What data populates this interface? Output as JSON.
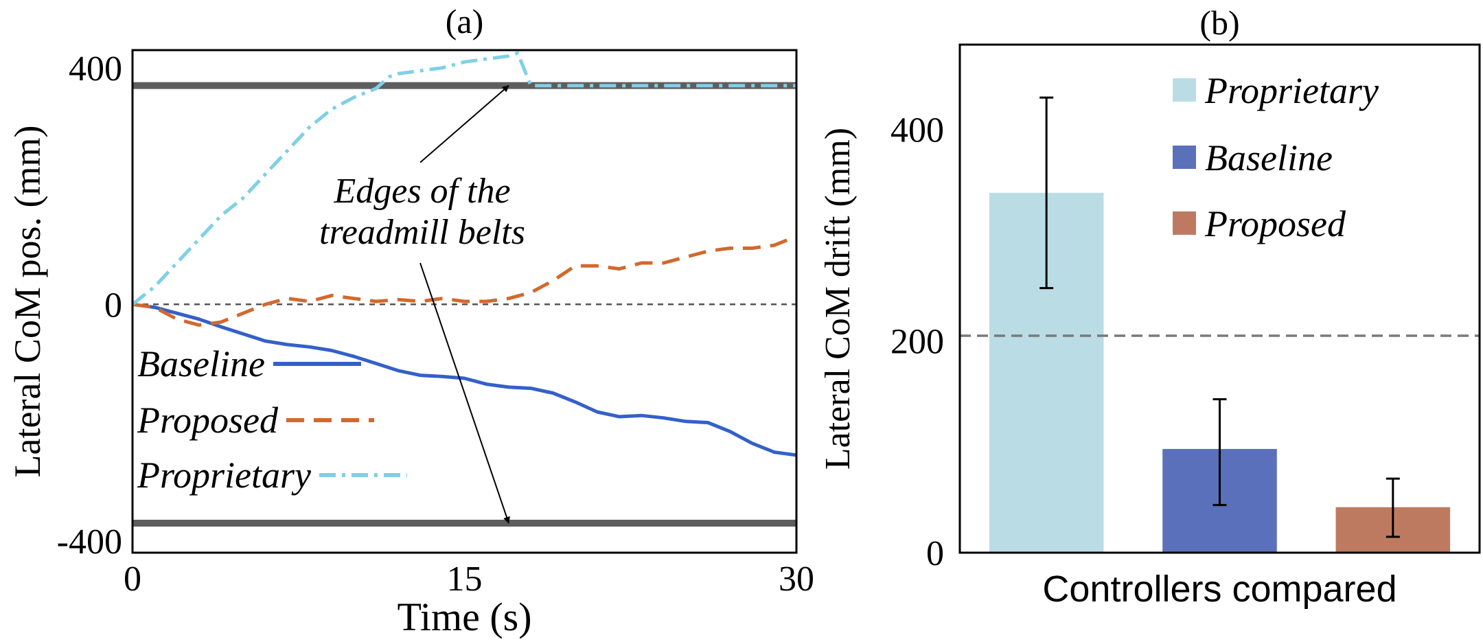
{
  "colors": {
    "baseline": "#3460C8",
    "proposed": "#D2692D",
    "proprietary": "#7FD0E6",
    "edges": "#5E5E5E",
    "bar_proprietary": "#BADDE5",
    "bar_baseline": "#5B70BA",
    "bar_proposed": "#BE7A60",
    "ref_line": "#7A7A7A"
  },
  "chart_data": [
    {
      "type": "line",
      "title": "(a)",
      "xlabel": "Time (s)",
      "ylabel": "Lateral CoM pos. (mm)",
      "xlim": [
        0,
        30
      ],
      "ylim": [
        -420,
        430
      ],
      "xticks": [
        "0",
        "15",
        "30"
      ],
      "xtick_values": [
        0,
        15,
        30
      ],
      "yticks": [
        "400",
        "0",
        "-400"
      ],
      "ytick_values": [
        400,
        0,
        -400
      ],
      "grid": false,
      "legend_position": "left-middle",
      "zero_line": 0,
      "edge_lines": [
        370,
        -370
      ],
      "annotation": {
        "lines": [
          "Edges of the",
          "treadmill belts"
        ],
        "arrow_targets": [
          {
            "x": 17,
            "y": 370
          },
          {
            "x": 17,
            "y": -370
          }
        ],
        "arrow_tails": [
          {
            "x": 13,
            "y": 240
          },
          {
            "x": 13,
            "y": 70
          }
        ]
      },
      "series": [
        {
          "name": "Baseline",
          "style": "solid",
          "x": [
            0,
            1,
            2,
            3,
            4,
            5,
            6,
            7,
            8,
            9,
            10,
            11,
            12,
            13,
            14,
            15,
            16,
            17,
            18,
            19,
            20,
            21,
            22,
            23,
            24,
            25,
            26,
            27,
            28,
            29,
            30
          ],
          "y": [
            0,
            -5,
            -15,
            -25,
            -38,
            -50,
            -62,
            -68,
            -72,
            -78,
            -88,
            -100,
            -112,
            -120,
            -122,
            -125,
            -135,
            -140,
            -142,
            -150,
            -165,
            -182,
            -190,
            -188,
            -192,
            -198,
            -200,
            -215,
            -235,
            -250,
            -255
          ]
        },
        {
          "name": "Proposed",
          "style": "dashed",
          "x": [
            0,
            1,
            2,
            3,
            4,
            5,
            6,
            7,
            8,
            9,
            10,
            11,
            12,
            13,
            14,
            15,
            16,
            17,
            18,
            19,
            20,
            21,
            22,
            23,
            24,
            25,
            26,
            27,
            28,
            29,
            30
          ],
          "y": [
            0,
            -5,
            -25,
            -35,
            -30,
            -15,
            0,
            10,
            5,
            15,
            10,
            5,
            8,
            5,
            10,
            5,
            5,
            10,
            20,
            40,
            65,
            65,
            60,
            70,
            70,
            80,
            90,
            95,
            95,
            100,
            115
          ]
        },
        {
          "name": "Proprietary",
          "style": "dashdot",
          "x": [
            0,
            1,
            2,
            3,
            4,
            5,
            6,
            7,
            8,
            9,
            10,
            11,
            11.6,
            12,
            13,
            14,
            15,
            16,
            17,
            17.4,
            18,
            19,
            20,
            21,
            22,
            23,
            24,
            25,
            26,
            27,
            28,
            29,
            30
          ],
          "y": [
            0,
            30,
            70,
            110,
            150,
            180,
            220,
            260,
            300,
            330,
            350,
            365,
            385,
            390,
            395,
            400,
            410,
            415,
            420,
            425,
            370,
            370,
            370,
            370,
            370,
            370,
            370,
            370,
            370,
            370,
            370,
            370,
            370
          ]
        }
      ]
    },
    {
      "type": "bar",
      "title": "(b)",
      "xlabel": "Controllers compared",
      "ylabel": "Lateral CoM drift (mm)",
      "ylim": [
        0,
        480
      ],
      "yticks": [
        "400",
        "200",
        "0"
      ],
      "ytick_values": [
        400,
        200,
        0
      ],
      "grid": false,
      "legend_position": "top-right",
      "reference_line": 205,
      "categories": [
        "Proprietary",
        "Baseline",
        "Proposed"
      ],
      "values": [
        340,
        98,
        43
      ],
      "error": [
        [
          250,
          430
        ],
        [
          45,
          145
        ],
        [
          15,
          70
        ]
      ]
    }
  ]
}
